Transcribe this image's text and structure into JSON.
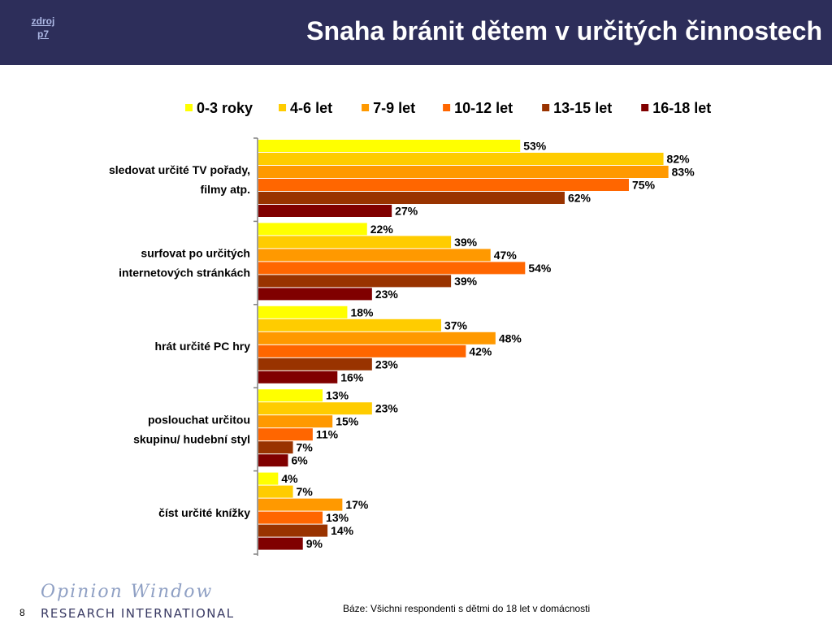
{
  "header": {
    "title": "Snaha bránit dětem v určitých činnostech",
    "source_link_line1": "zdroj",
    "source_link_line2": "p7",
    "background_color": "#2d2e5a"
  },
  "chart_data": {
    "type": "bar",
    "orientation": "horizontal",
    "categories": [
      [
        "sledovat určité TV pořady,",
        "filmy atp."
      ],
      [
        "surfovat po určitých",
        "internetových stránkách"
      ],
      [
        "hrát určité PC hry"
      ],
      [
        "poslouchat určitou",
        "skupinu/ hudební styl"
      ],
      [
        "číst určité knížky"
      ]
    ],
    "series": [
      {
        "name": "0-3 roky",
        "color": "#ffff00",
        "values": [
          53,
          22,
          18,
          13,
          4
        ]
      },
      {
        "name": "4-6 let",
        "color": "#ffcc00",
        "values": [
          82,
          39,
          37,
          23,
          7
        ]
      },
      {
        "name": "7-9 let",
        "color": "#ff9900",
        "values": [
          83,
          47,
          48,
          15,
          17
        ]
      },
      {
        "name": "10-12 let",
        "color": "#ff6600",
        "values": [
          75,
          54,
          42,
          11,
          13
        ]
      },
      {
        "name": "13-15 let",
        "color": "#993300",
        "values": [
          62,
          39,
          23,
          7,
          14
        ]
      },
      {
        "name": "16-18 let",
        "color": "#800000",
        "values": [
          27,
          23,
          16,
          6,
          9
        ]
      }
    ],
    "value_suffix": "%",
    "xlim": [
      0,
      100
    ],
    "grid": false,
    "legend_position": "top"
  },
  "footer": {
    "brand_line1": "Opinion Window",
    "brand_line2": "RESEARCH INTERNATIONAL",
    "page_number": "8",
    "base_note": "Báze: Všichni respondenti s dětmi do 18 let v domácnosti"
  }
}
